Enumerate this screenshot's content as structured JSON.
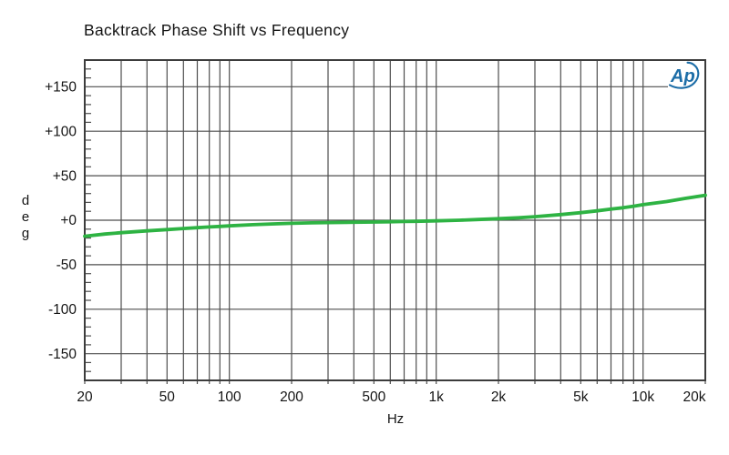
{
  "page": {
    "background": "#ffffff"
  },
  "logo": {
    "text": "Ap",
    "color": "#1c6da7"
  },
  "colors": {
    "grid": "#4e4e4e",
    "border": "#3c3c3c",
    "curve_green": "#2eb343",
    "text": "#141414",
    "logo_blue": "#1c6da7"
  },
  "chart_data": {
    "type": "line",
    "title": "Backtrack Phase Shift vs Frequency",
    "xlabel": "Hz",
    "ylabel": "deg",
    "x_scale": "log",
    "xlim": [
      20,
      20000
    ],
    "ylim": [
      -180,
      180
    ],
    "grid": true,
    "legend": false,
    "x_ticks": [
      {
        "value": 20,
        "label": "20"
      },
      {
        "value": 50,
        "label": "50"
      },
      {
        "value": 100,
        "label": "100"
      },
      {
        "value": 200,
        "label": "200"
      },
      {
        "value": 500,
        "label": "500"
      },
      {
        "value": 1000,
        "label": "1k"
      },
      {
        "value": 2000,
        "label": "2k"
      },
      {
        "value": 5000,
        "label": "5k"
      },
      {
        "value": 10000,
        "label": "10k"
      },
      {
        "value": 20000,
        "label": "20k"
      }
    ],
    "x_gridlines": [
      20,
      30,
      40,
      50,
      60,
      70,
      80,
      90,
      100,
      200,
      300,
      400,
      500,
      600,
      700,
      800,
      900,
      1000,
      2000,
      3000,
      4000,
      5000,
      6000,
      7000,
      8000,
      9000,
      10000,
      20000
    ],
    "y_ticks": [
      {
        "value": 150,
        "label": "+150"
      },
      {
        "value": 100,
        "label": "+100"
      },
      {
        "value": 50,
        "label": "+50"
      },
      {
        "value": 0,
        "label": "+0"
      },
      {
        "value": -50,
        "label": "-50"
      },
      {
        "value": -100,
        "label": "-100"
      },
      {
        "value": -150,
        "label": "-150"
      }
    ],
    "y_minor_tick_step": 10,
    "series": [
      {
        "name": "phase",
        "color": "#2eb343",
        "points": [
          [
            20,
            -18
          ],
          [
            25,
            -15.5
          ],
          [
            30,
            -14
          ],
          [
            40,
            -12
          ],
          [
            50,
            -10.5
          ],
          [
            60,
            -9.3
          ],
          [
            70,
            -8.4
          ],
          [
            80,
            -7.6
          ],
          [
            90,
            -7
          ],
          [
            100,
            -6.3
          ],
          [
            130,
            -5
          ],
          [
            160,
            -4.2
          ],
          [
            200,
            -3.5
          ],
          [
            250,
            -3
          ],
          [
            300,
            -2.7
          ],
          [
            400,
            -2.3
          ],
          [
            500,
            -2
          ],
          [
            600,
            -1.7
          ],
          [
            700,
            -1.4
          ],
          [
            800,
            -1.2
          ],
          [
            1000,
            -0.7
          ],
          [
            1300,
            0
          ],
          [
            1600,
            0.8
          ],
          [
            2000,
            1.7
          ],
          [
            2500,
            2.8
          ],
          [
            3000,
            4
          ],
          [
            4000,
            6.3
          ],
          [
            5000,
            8.5
          ],
          [
            6000,
            10.5
          ],
          [
            7000,
            12.5
          ],
          [
            8000,
            14
          ],
          [
            9000,
            15.8
          ],
          [
            10000,
            17.5
          ],
          [
            13000,
            21
          ],
          [
            16000,
            24.5
          ],
          [
            20000,
            28
          ]
        ]
      }
    ]
  }
}
